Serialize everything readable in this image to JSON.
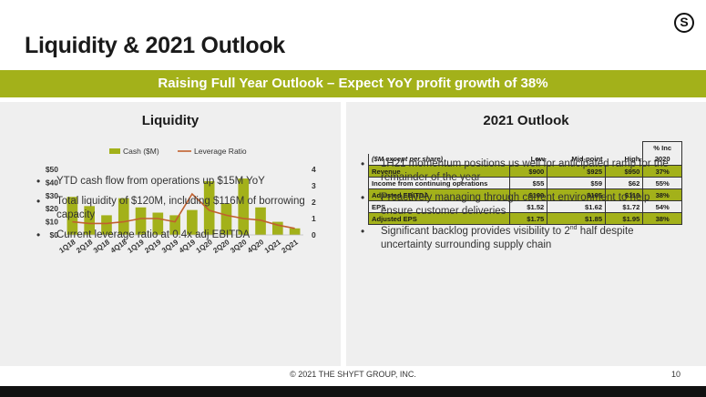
{
  "title": "Liquidity & 2021 Outlook",
  "logo": "S",
  "banner": "Raising Full Year Outlook – Expect YoY profit growth of 38%",
  "liquidity": {
    "heading": "Liquidity",
    "bullets": [
      "YTD cash flow from operations up $15M YoY",
      "Total liquidity of $120M, including $116M of borrowing capacity",
      "Current leverage ratio at 0.4x adj EBITDA"
    ]
  },
  "outlook": {
    "heading": "2021 Outlook",
    "pct_inc_label": "% Inc",
    "columns": [
      "($M except per share)",
      "Low",
      "Mid-point",
      "High",
      "2020"
    ],
    "rows": [
      {
        "label": "Revenue",
        "low": "$900",
        "mid": "$925",
        "high": "$950",
        "inc": "37%"
      },
      {
        "label": "Income from continuing operations",
        "low": "$55",
        "mid": "$59",
        "high": "$62",
        "inc": "55%"
      },
      {
        "label": "Adjusted EBITDA",
        "low": "$100",
        "mid": "$105",
        "high": "$110",
        "inc": "38%"
      },
      {
        "label": "EPS",
        "low": "$1.52",
        "mid": "$1.62",
        "high": "$1.72",
        "inc": "54%"
      },
      {
        "label": "Adjusted EPS",
        "low": "$1.75",
        "mid": "$1.85",
        "high": "$1.95",
        "inc": "38%"
      }
    ],
    "bullets": [
      "1H21 momentum positions us well for anticipated ramp for the remainder of the year",
      "Proactively managing through current environment to help ensure customer deliveries"
    ],
    "bullet3": {
      "pre": "Significant backlog provides visibility to 2",
      "sup": "nd",
      "post": " half despite uncertainty surrounding supply chain"
    }
  },
  "footer": "© 2021 THE SHYFT GROUP, INC.",
  "page_number": "10",
  "colors": {
    "accent": "#a3b11a",
    "line": "#c0602e",
    "panel": "#efefef"
  },
  "chart_data": {
    "type": "bar",
    "categories": [
      "1Q18",
      "2Q18",
      "3Q18",
      "4Q18",
      "1Q19",
      "2Q19",
      "3Q19",
      "4Q19",
      "1Q20",
      "2Q20",
      "3Q20",
      "4Q20",
      "1Q21",
      "2Q21"
    ],
    "series": [
      {
        "name": "Cash ($M)",
        "type": "bar",
        "axis": "left",
        "color": "#a3b11a",
        "values": [
          29,
          22,
          15,
          28,
          21,
          17,
          15,
          19,
          41,
          24,
          43,
          21,
          10,
          5
        ]
      },
      {
        "name": "Leverage Ratio",
        "type": "line",
        "axis": "right",
        "color": "#c0602e",
        "values": [
          0.8,
          0.7,
          0.7,
          0.8,
          1.0,
          1.0,
          0.8,
          2.5,
          1.5,
          1.2,
          1.0,
          0.9,
          0.6,
          0.4
        ]
      }
    ],
    "y_left": {
      "min": 0,
      "max": 50,
      "ticks": [
        0,
        10,
        20,
        30,
        40,
        50
      ],
      "tick_labels": [
        "$0",
        "$10",
        "$20",
        "$30",
        "$40",
        "$50"
      ]
    },
    "y_right": {
      "min": 0,
      "max": 4,
      "ticks": [
        0,
        1,
        2,
        3,
        4
      ],
      "tick_labels": [
        "0",
        "1",
        "2",
        "3",
        "4"
      ]
    },
    "legend": "top-center",
    "grid": false
  }
}
